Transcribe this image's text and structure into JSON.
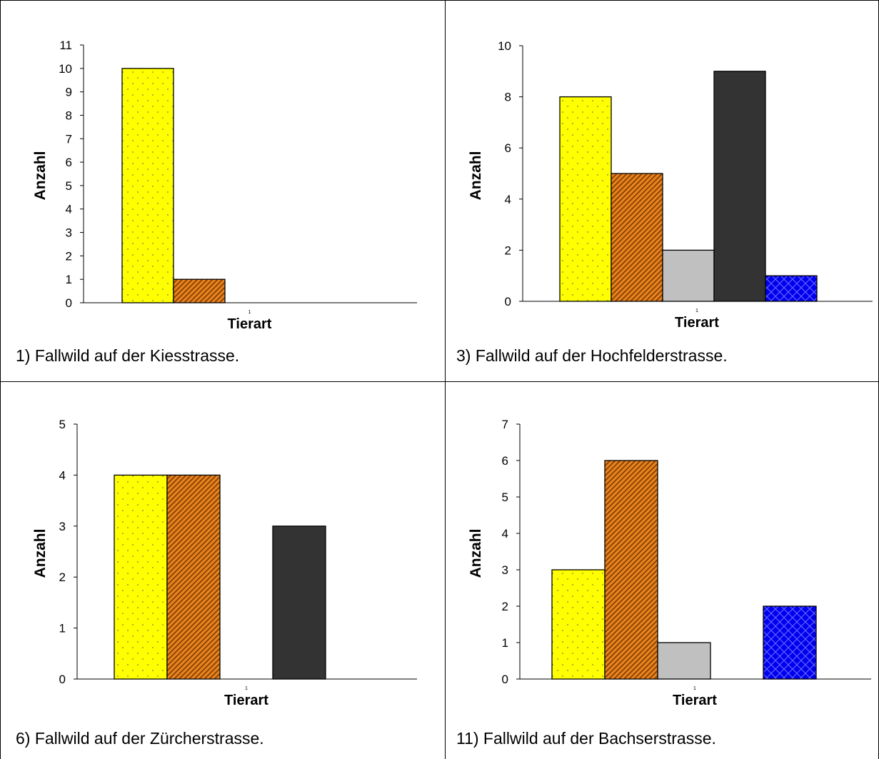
{
  "colors": {
    "yellow_fill": "#ffff00",
    "yellow_dot": "#9a9a40",
    "orange_fill": "#e8821e",
    "orange_stripe": "#7a3a00",
    "gray_fill": "#c0c0c0",
    "dark_fill": "#333333",
    "blue_fill": "#0000ee",
    "blue_hatch": "#6060ff"
  },
  "chart_data": [
    {
      "type": "bar",
      "xlabel": "Tierart",
      "ylabel": "Anzahl",
      "x_tick": "1",
      "ylim": [
        0,
        11
      ],
      "yticks": [
        0,
        1,
        2,
        3,
        4,
        5,
        6,
        7,
        8,
        9,
        10,
        11
      ],
      "series": [
        {
          "fill": "yellow",
          "value": 10
        },
        {
          "fill": "orange",
          "value": 1
        },
        {
          "fill": "gray",
          "value": 0
        },
        {
          "fill": "dark",
          "value": 0
        },
        {
          "fill": "blue",
          "value": 0
        }
      ],
      "caption": "1) Fallwild auf der Kiesstrasse."
    },
    {
      "type": "bar",
      "xlabel": "Tierart",
      "ylabel": "Anzahl",
      "x_tick": "1",
      "ylim": [
        0,
        10
      ],
      "yticks": [
        0,
        2,
        4,
        6,
        8,
        10
      ],
      "series": [
        {
          "fill": "yellow",
          "value": 8
        },
        {
          "fill": "orange",
          "value": 5
        },
        {
          "fill": "gray",
          "value": 2
        },
        {
          "fill": "dark",
          "value": 9
        },
        {
          "fill": "blue",
          "value": 1
        }
      ],
      "caption": "3) Fallwild auf der Hochfelderstrasse."
    },
    {
      "type": "bar",
      "xlabel": "Tierart",
      "ylabel": "Anzahl",
      "x_tick": "1",
      "ylim": [
        0,
        5
      ],
      "yticks": [
        0,
        1,
        2,
        3,
        4,
        5
      ],
      "series": [
        {
          "fill": "yellow",
          "value": 4
        },
        {
          "fill": "orange",
          "value": 4
        },
        {
          "fill": "gray",
          "value": 0
        },
        {
          "fill": "dark",
          "value": 3
        },
        {
          "fill": "blue",
          "value": 0
        }
      ],
      "caption": "6) Fallwild auf der Zürcherstrasse."
    },
    {
      "type": "bar",
      "xlabel": "Tierart",
      "ylabel": "Anzahl",
      "x_tick": "1",
      "ylim": [
        0,
        7
      ],
      "yticks": [
        0,
        1,
        2,
        3,
        4,
        5,
        6,
        7
      ],
      "series": [
        {
          "fill": "yellow",
          "value": 3
        },
        {
          "fill": "orange",
          "value": 6
        },
        {
          "fill": "gray",
          "value": 1
        },
        {
          "fill": "dark",
          "value": 0
        },
        {
          "fill": "blue",
          "value": 2
        }
      ],
      "caption": "11) Fallwild auf der Bachserstrasse."
    }
  ]
}
